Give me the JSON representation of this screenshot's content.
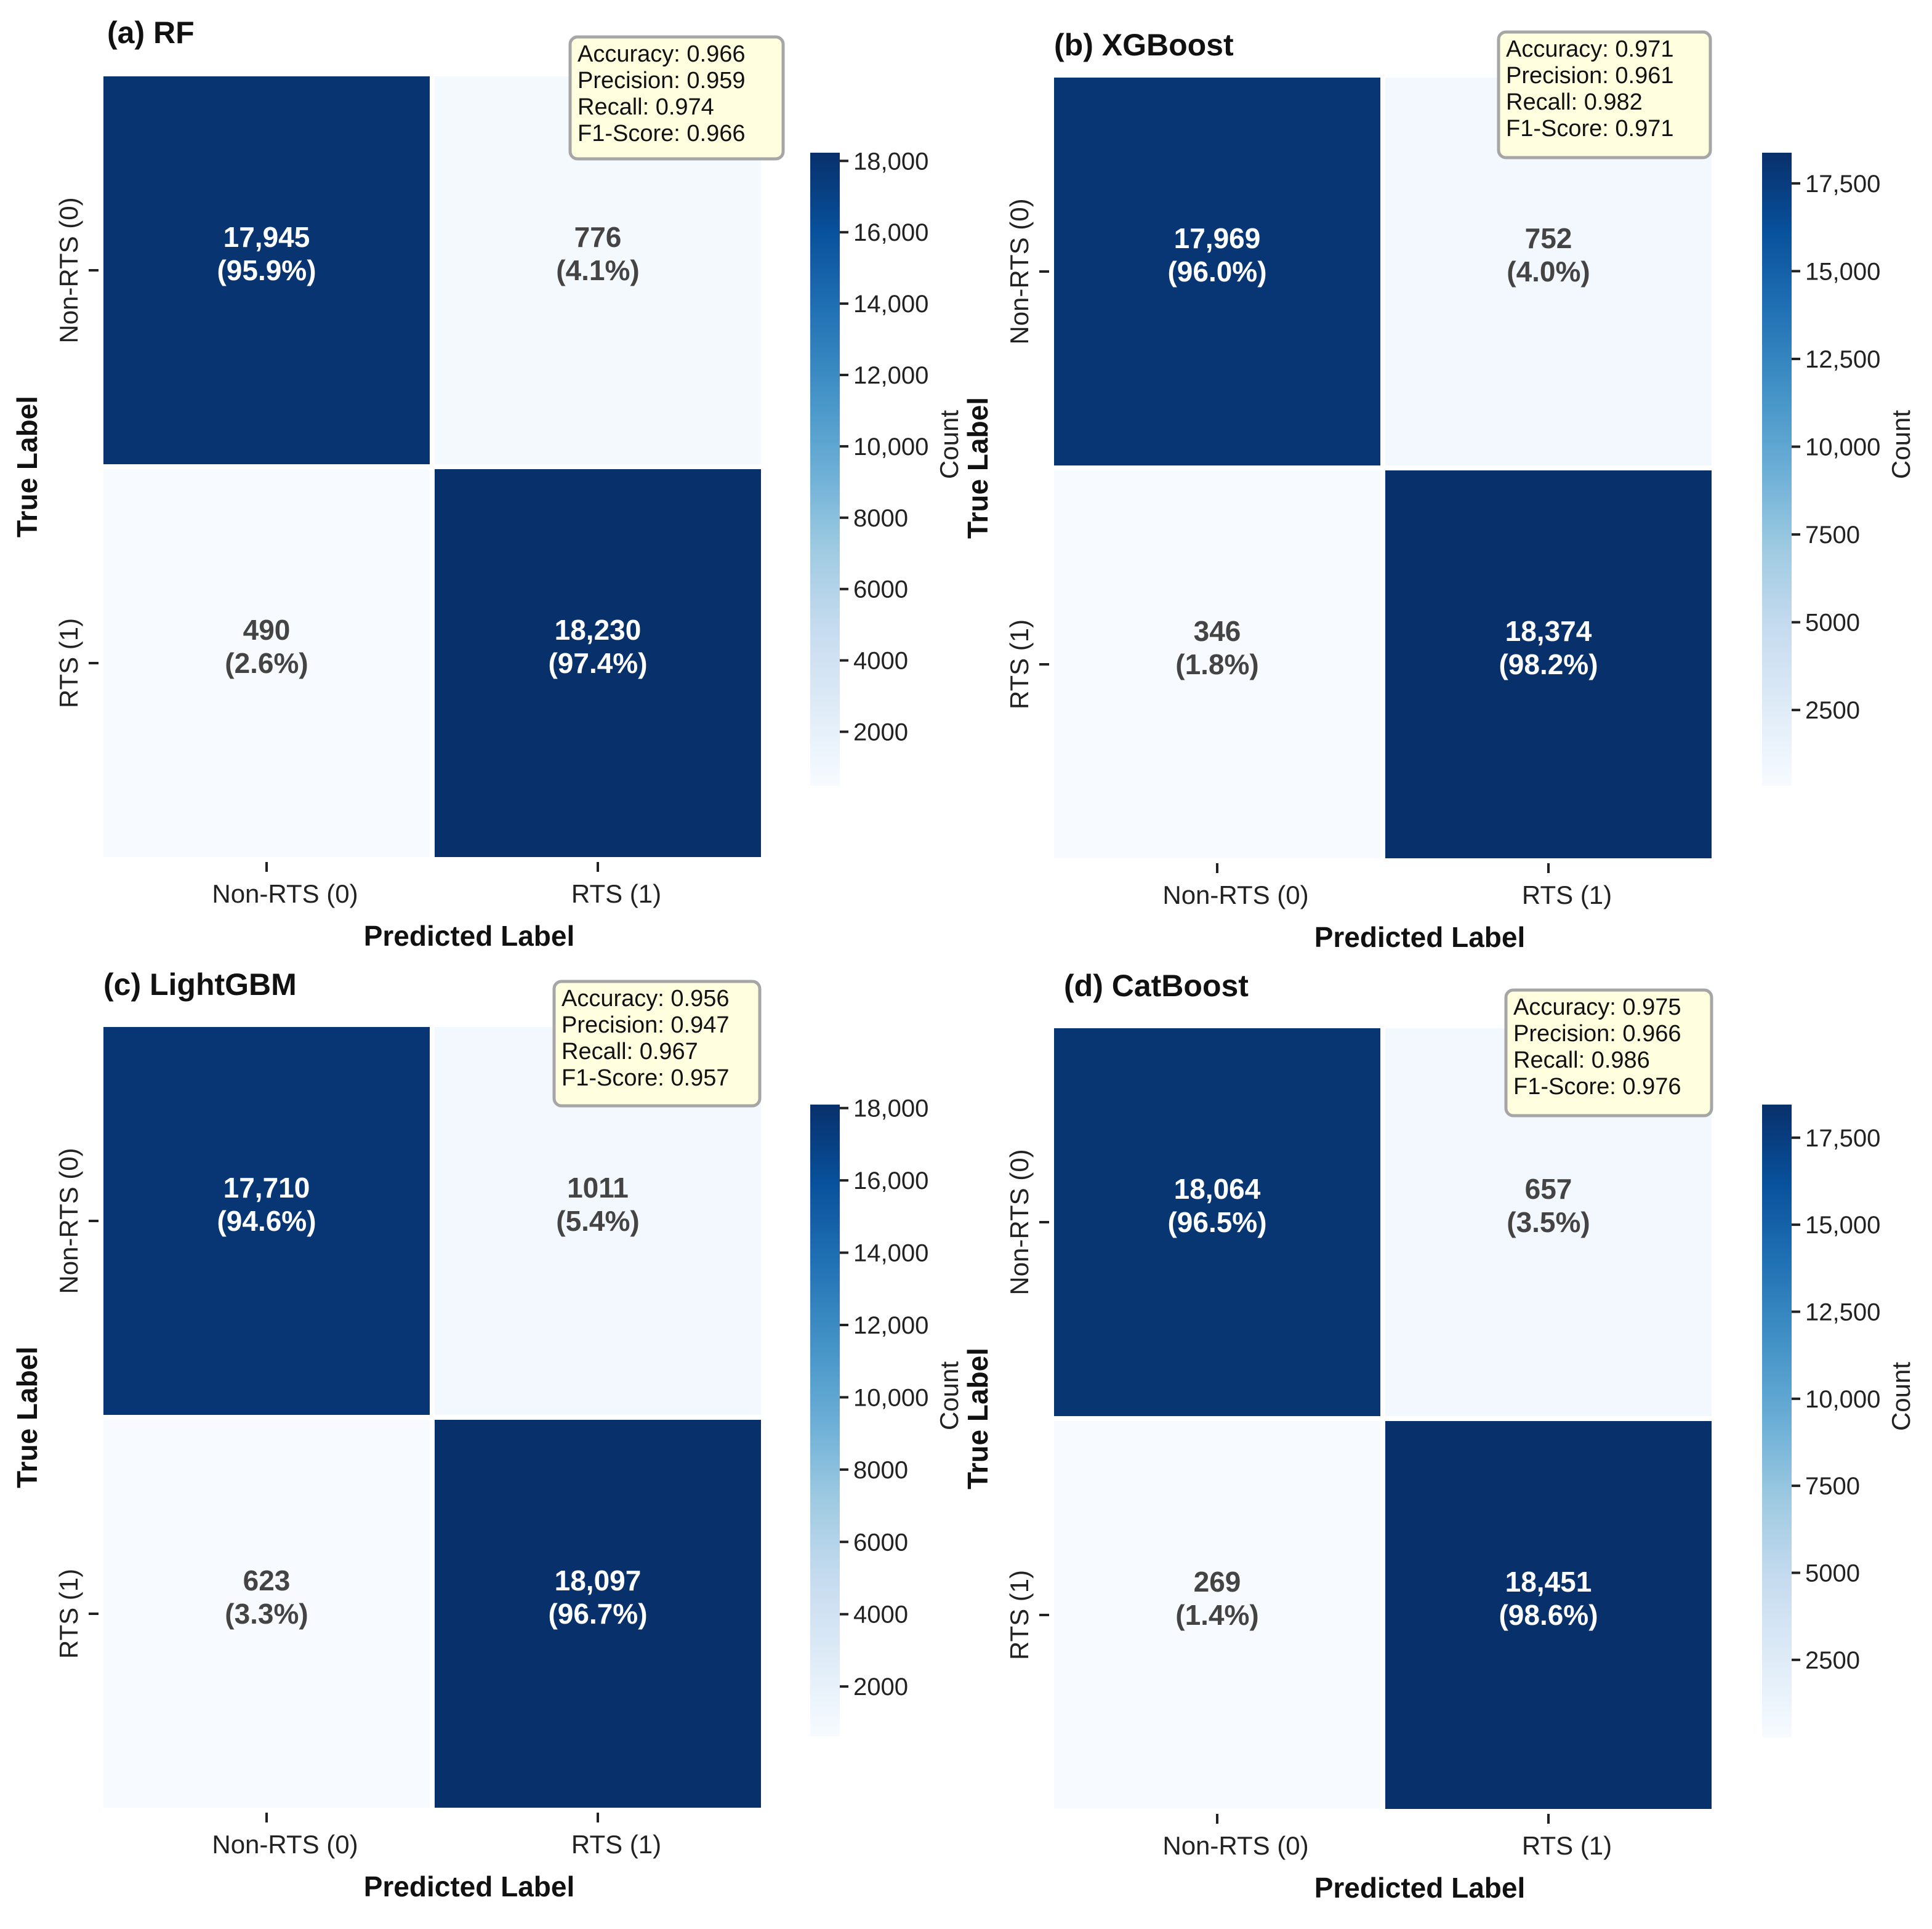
{
  "chart_data": [
    {
      "type": "heatmap",
      "title": "(a) RF",
      "xlabel": "Predicted Label",
      "ylabel": "True Label",
      "x_categories": [
        "Non-RTS (0)",
        "RTS (1)"
      ],
      "y_categories": [
        "Non-RTS (0)",
        "RTS (1)"
      ],
      "matrix": [
        [
          17945,
          776
        ],
        [
          490,
          18230
        ]
      ],
      "cell_labels": [
        [
          "17,945",
          "(95.9%)",
          "776",
          "(4.1%)"
        ],
        [
          "490",
          "(2.6%)",
          "18,230",
          "(97.4%)"
        ]
      ],
      "metrics": [
        "Accuracy: 0.966",
        "Precision: 0.959",
        "Recall: 0.974",
        "F1-Score: 0.966"
      ],
      "colorbar": {
        "label": "Count",
        "range": [
          490,
          18230
        ],
        "ticks": [
          2000,
          4000,
          6000,
          8000,
          10000,
          12000,
          14000,
          16000,
          18000
        ],
        "tick_labels": [
          "2000",
          "4000",
          "6000",
          "8000",
          "10,000",
          "12,000",
          "14,000",
          "16,000",
          "18,000"
        ]
      }
    },
    {
      "type": "heatmap",
      "title": "(b) XGBoost",
      "xlabel": "Predicted Label",
      "ylabel": "True Label",
      "x_categories": [
        "Non-RTS (0)",
        "RTS (1)"
      ],
      "y_categories": [
        "Non-RTS (0)",
        "RTS (1)"
      ],
      "matrix": [
        [
          17969,
          752
        ],
        [
          346,
          18374
        ]
      ],
      "cell_labels": [
        [
          "17,969",
          "(96.0%)",
          "752",
          "(4.0%)"
        ],
        [
          "346",
          "(1.8%)",
          "18,374",
          "(98.2%)"
        ]
      ],
      "metrics": [
        "Accuracy: 0.971",
        "Precision: 0.961",
        "Recall: 0.982",
        "F1-Score: 0.971"
      ],
      "colorbar": {
        "label": "Count",
        "range": [
          346,
          18374
        ],
        "ticks": [
          2500,
          5000,
          7500,
          10000,
          12500,
          15000,
          17500
        ],
        "tick_labels": [
          "2500",
          "5000",
          "7500",
          "10,000",
          "12,500",
          "15,000",
          "17,500"
        ]
      }
    },
    {
      "type": "heatmap",
      "title": "(c) LightGBM",
      "xlabel": "Predicted Label",
      "ylabel": "True Label",
      "x_categories": [
        "Non-RTS (0)",
        "RTS (1)"
      ],
      "y_categories": [
        "Non-RTS (0)",
        "RTS (1)"
      ],
      "matrix": [
        [
          17710,
          1011
        ],
        [
          623,
          18097
        ]
      ],
      "cell_labels": [
        [
          "17,710",
          "(94.6%)",
          "1011",
          "(5.4%)"
        ],
        [
          "623",
          "(3.3%)",
          "18,097",
          "(96.7%)"
        ]
      ],
      "metrics": [
        "Accuracy: 0.956",
        "Precision: 0.947",
        "Recall: 0.967",
        "F1-Score: 0.957"
      ],
      "colorbar": {
        "label": "Count",
        "range": [
          623,
          18097
        ],
        "ticks": [
          2000,
          4000,
          6000,
          8000,
          10000,
          12000,
          14000,
          16000,
          18000
        ],
        "tick_labels": [
          "2000",
          "4000",
          "6000",
          "8000",
          "10,000",
          "12,000",
          "14,000",
          "16,000",
          "18,000"
        ]
      }
    },
    {
      "type": "heatmap",
      "title": "(d) CatBoost",
      "xlabel": "Predicted Label",
      "ylabel": "True Label",
      "x_categories": [
        "Non-RTS (0)",
        "RTS (1)"
      ],
      "y_categories": [
        "Non-RTS (0)",
        "RTS (1)"
      ],
      "matrix": [
        [
          18064,
          657
        ],
        [
          269,
          18451
        ]
      ],
      "cell_labels": [
        [
          "18,064",
          "(96.5%)",
          "657",
          "(3.5%)"
        ],
        [
          "269",
          "(1.4%)",
          "18,451",
          "(98.6%)"
        ]
      ],
      "metrics": [
        "Accuracy: 0.975",
        "Precision: 0.966",
        "Recall: 0.986",
        "F1-Score: 0.976"
      ],
      "colorbar": {
        "label": "Count",
        "range": [
          269,
          18451
        ],
        "ticks": [
          2500,
          5000,
          7500,
          10000,
          12500,
          15000,
          17500
        ],
        "tick_labels": [
          "2500",
          "5000",
          "7500",
          "10,000",
          "12,500",
          "15,000",
          "17,500"
        ]
      }
    }
  ],
  "colors": {
    "high": "#08306b",
    "low": "#f7fbff",
    "text_dark_cell": "#ffffff",
    "text_light_cell": "#444444",
    "metrics_box_fill": "#ffffe0",
    "metrics_box_border": "#a6a6a6"
  }
}
